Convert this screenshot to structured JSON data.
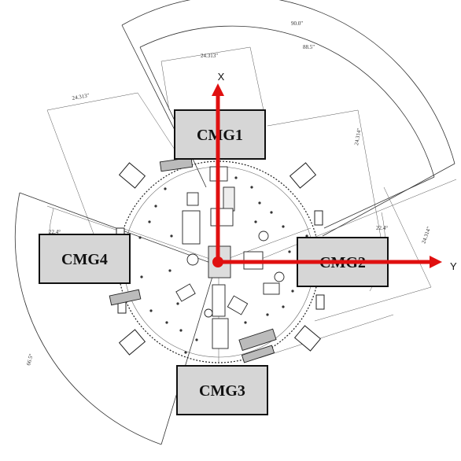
{
  "axes": {
    "x_label": "X",
    "y_label": "Y",
    "color": "#e01010"
  },
  "cmgs": [
    {
      "id": "cmg1",
      "label": "CMG1"
    },
    {
      "id": "cmg2",
      "label": "CMG2"
    },
    {
      "id": "cmg3",
      "label": "CMG3"
    },
    {
      "id": "cmg4",
      "label": "CMG4"
    }
  ],
  "dimensions": [
    {
      "id": "dim-outer-arc",
      "text": "90.0\""
    },
    {
      "id": "dim-inner-arc",
      "text": "88.5\""
    },
    {
      "id": "dim-top-center",
      "text": "24.313\""
    },
    {
      "id": "dim-top-left",
      "text": "24.313\""
    },
    {
      "id": "dim-right-vertical",
      "text": "24.314\""
    },
    {
      "id": "dim-right-lower",
      "text": "24.314\""
    },
    {
      "id": "dim-angle-right",
      "text": "22.4°"
    },
    {
      "id": "dim-angle-left",
      "text": "22.4°"
    },
    {
      "id": "dim-left-arc",
      "text": "66.5°"
    }
  ]
}
